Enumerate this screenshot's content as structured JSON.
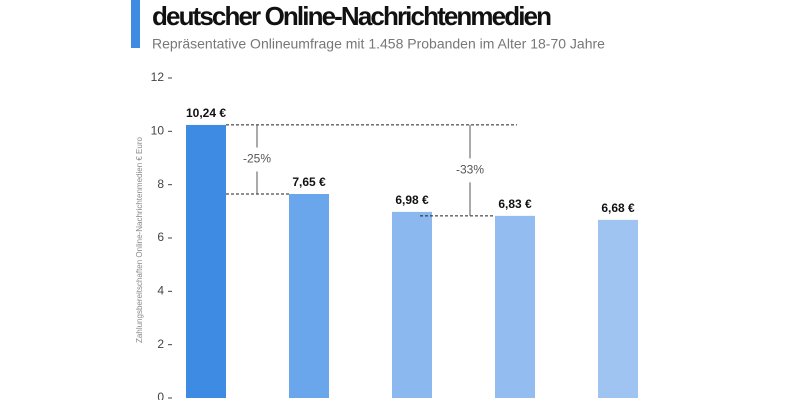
{
  "chart_data": {
    "type": "bar",
    "title": "deutscher Online-Nachrichtenmedien",
    "subtitle": "Repräsentative Onlineumfrage mit 1.458 Probanden im Alter 18-70 Jahre",
    "y_label": "Zahlungsbereitschaften Online-Nachrichtenmedien € Euro",
    "values": [
      10.24,
      7.65,
      6.98,
      6.83,
      6.68
    ],
    "value_labels": [
      "10,24 €",
      "7,65 €",
      "6,98 €",
      "6,83 €",
      "6,68 €"
    ],
    "colors": [
      "#3d8be3",
      "#6aa6ec",
      "#8bb8ef",
      "#93bdf0",
      "#9fc4f2"
    ],
    "ylim": [
      0,
      12
    ],
    "yticks": [
      0,
      2,
      4,
      6,
      8,
      10,
      12
    ],
    "annotations": [
      "-25%",
      "-33%"
    ]
  }
}
